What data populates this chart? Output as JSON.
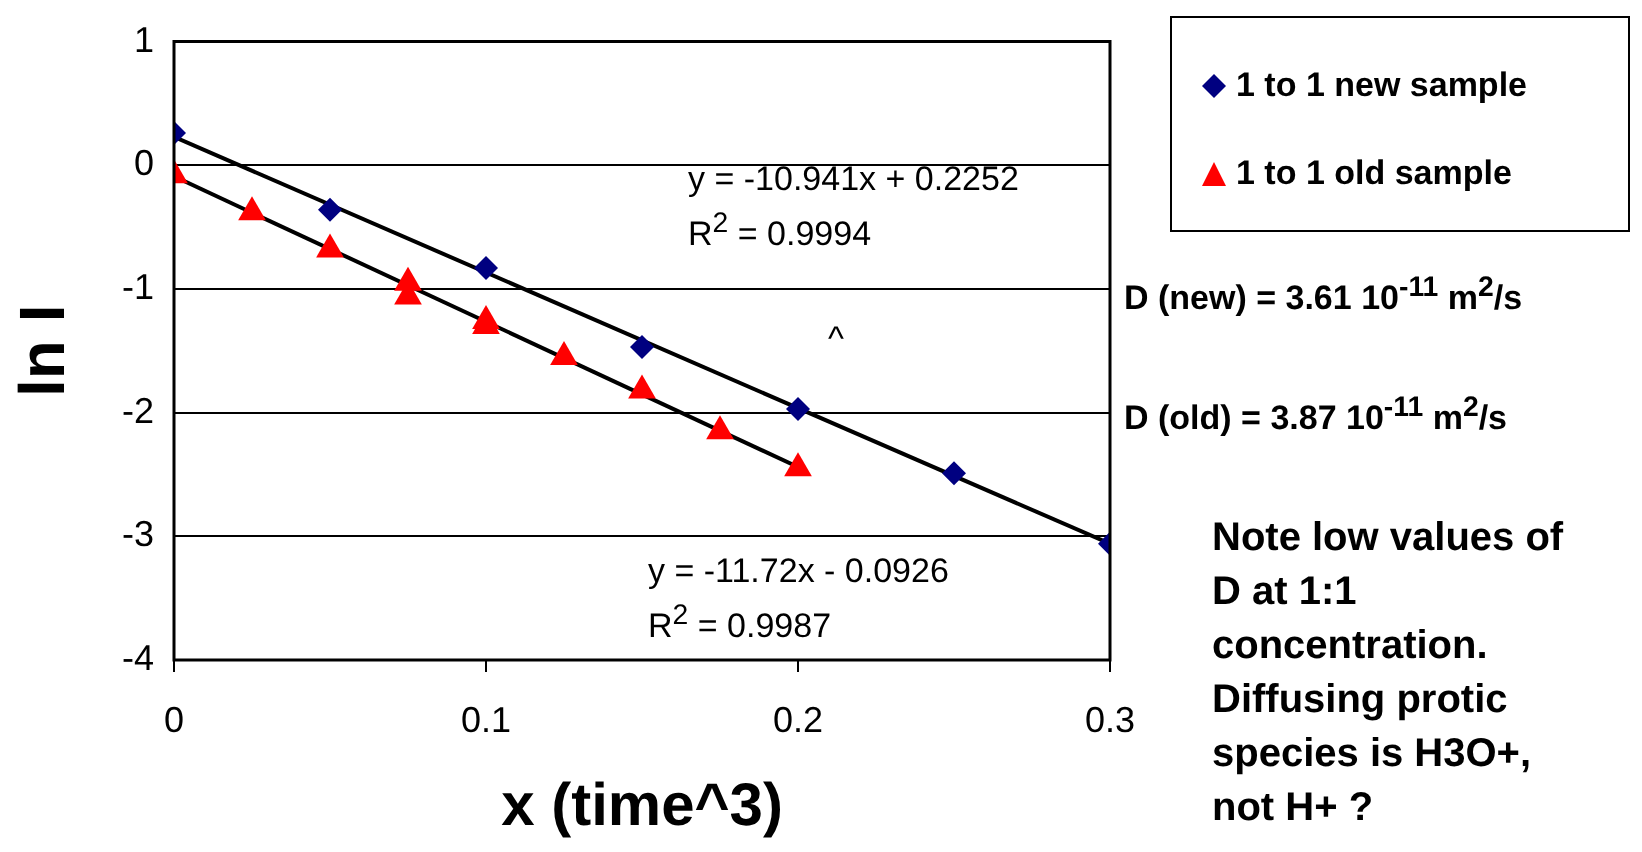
{
  "chart_data": {
    "type": "scatter",
    "xlabel": "x (time^3)",
    "ylabel": "ln I",
    "xlim": [
      0,
      0.3
    ],
    "xticks": [
      0,
      0.1,
      0.2,
      0.3
    ],
    "ylim": [
      -4,
      1
    ],
    "yticks": [
      -4,
      -3,
      -2,
      -1,
      0,
      1
    ],
    "grid": "y",
    "legend": "right",
    "series": [
      {
        "name": "1 to 1 new sample",
        "color": "#000080",
        "marker": "diamond",
        "x": [
          0,
          0.05,
          0.1,
          0.15,
          0.2,
          0.25,
          0.3
        ],
        "values": [
          0.26,
          -0.36,
          -0.83,
          -1.47,
          -1.97,
          -2.49,
          -3.06
        ]
      },
      {
        "name": "1 to 1 old sample",
        "color": "#ff0000",
        "marker": "triangle",
        "x": [
          0,
          0.025,
          0.05,
          0.075,
          0.075,
          0.1,
          0.1,
          0.125,
          0.15,
          0.175,
          0.2
        ],
        "values": [
          -0.08,
          -0.38,
          -0.68,
          -0.95,
          -1.06,
          -1.26,
          -1.3,
          -1.55,
          -1.82,
          -2.15,
          -2.45
        ]
      },
      {
        "type": "line",
        "color": "#000000",
        "marker": "none",
        "x": [
          0,
          0.3
        ],
        "values": [
          0.23,
          -3.06
        ]
      },
      {
        "type": "line",
        "color": "#000000",
        "marker": "none",
        "x": [
          0,
          0.2
        ],
        "values": [
          -0.09,
          -2.44
        ]
      }
    ],
    "annotations": [
      "y = -10.941x + 0.2252",
      "R$^{2}$ = 0.9994",
      "^",
      "y = -11.72x - 0.0926",
      "R$^{2}$ = 0.9987",
      "D (new) = 3.61 10$^{-11}$ m$^{2}$/s",
      "D (old) = 3.87 10$^{-11}$ m$^{2}$/s",
      "Note low values of D at 1:1 concentration. Diffusing protic species is H3O+, not H+ ?"
    ]
  }
}
